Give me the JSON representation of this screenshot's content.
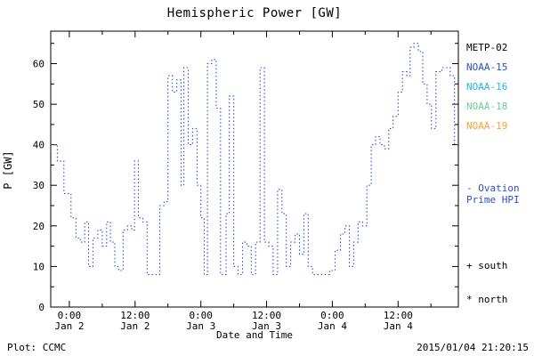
{
  "chart_data": {
    "type": "line",
    "title": "Hemispheric Power [GW]",
    "xlabel": "Date and Time",
    "ylabel": "P [GW]",
    "ylim": [
      0,
      68
    ],
    "yticks": [
      0,
      10,
      20,
      30,
      40,
      50,
      60
    ],
    "xlim_hours_from_jan2": [
      -3.4,
      71
    ],
    "xticks": [
      {
        "hour": 0,
        "time": "0:00",
        "date": "Jan 2"
      },
      {
        "hour": 12,
        "time": "12:00",
        "date": "Jan 2"
      },
      {
        "hour": 24,
        "time": "0:00",
        "date": "Jan 3"
      },
      {
        "hour": 36,
        "time": "12:00",
        "date": "Jan 3"
      },
      {
        "hour": 48,
        "time": "0:00",
        "date": "Jan 4"
      },
      {
        "hour": 60,
        "time": "12:00",
        "date": "Jan 4"
      }
    ],
    "grid": false,
    "legend_position": "right",
    "series": [
      {
        "name": "Ovation Prime HPI",
        "color": "#2b50c8",
        "style": "dotted-step",
        "x_hours": [
          -3.4,
          -2.2,
          -1.0,
          0.3,
          1.2,
          2.0,
          2.8,
          3.5,
          4.3,
          5.2,
          6.0,
          6.8,
          7.5,
          8.3,
          9.0,
          9.8,
          10.6,
          11.4,
          11.9,
          12.6,
          13.4,
          14.2,
          15.8,
          16.5,
          17.3,
          18.0,
          18.8,
          19.6,
          20.4,
          20.9,
          21.7,
          22.5,
          23.3,
          24.0,
          24.6,
          25.2,
          26.0,
          26.8,
          27.6,
          28.6,
          29.2,
          30.0,
          30.8,
          31.6,
          32.4,
          33.2,
          34.0,
          34.8,
          35.6,
          36.4,
          37.2,
          38.0,
          38.8,
          39.6,
          40.4,
          41.2,
          42.0,
          42.8,
          43.6,
          44.4,
          46.0,
          47.5,
          48.5,
          49.5,
          50.3,
          51.1,
          51.9,
          52.7,
          53.5,
          54.3,
          55.1,
          55.9,
          56.7,
          57.5,
          58.3,
          59.1,
          60.0,
          60.8,
          61.6,
          62.2,
          62.9,
          63.7,
          64.5,
          65.3,
          66.1,
          66.9,
          68.0,
          69.5,
          70.3
        ],
        "values": [
          40,
          36,
          28,
          22,
          17,
          16,
          21,
          10,
          17,
          19,
          15,
          21,
          16,
          10,
          9,
          19,
          20,
          19,
          36,
          22,
          21,
          8,
          8,
          25,
          26,
          57,
          53,
          56,
          30,
          59,
          40,
          44,
          30,
          22,
          8,
          60,
          61,
          49,
          8,
          23,
          52,
          10,
          8,
          16,
          15,
          8,
          16,
          59,
          16,
          15,
          8,
          29,
          23,
          10,
          16,
          18,
          13,
          23,
          10,
          8,
          8,
          9,
          14,
          18,
          20,
          10,
          16,
          21,
          20,
          30,
          40,
          42,
          40,
          39,
          44,
          47,
          53,
          58,
          57,
          64,
          65,
          63,
          55,
          50,
          44,
          58,
          59,
          57,
          40
        ]
      }
    ]
  },
  "legend": {
    "satellites": [
      {
        "label": "METP-02",
        "color": "#000000"
      },
      {
        "label": "NOAA-15",
        "color": "#2b50c8"
      },
      {
        "label": "NOAA-16",
        "color": "#1fb5e9"
      },
      {
        "label": "NOAA-18",
        "color": "#66cf9a"
      },
      {
        "label": "NOAA-19",
        "color": "#f6a13a"
      }
    ],
    "note_line1": "- Ovation",
    "note_line2": "Prime HPI",
    "note_color": "#2b50c8",
    "south_marker": "+ south",
    "north_marker": "* north"
  },
  "footer": {
    "credit": "Plot: CCMC",
    "timestamp": "2015/01/04 21:20:15"
  }
}
